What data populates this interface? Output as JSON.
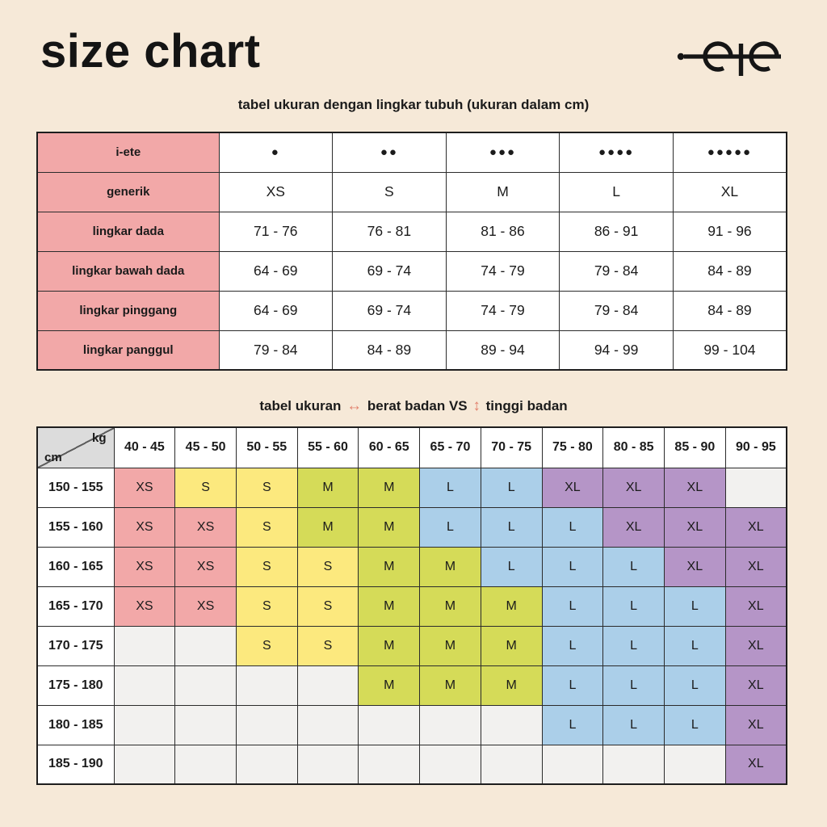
{
  "page": {
    "title": "size chart",
    "background": "#F6E9D8",
    "logo_color": "#151515"
  },
  "chart_data": [
    {
      "type": "table",
      "title": "tabel ukuran dengan lingkar tubuh (ukuran dalam cm)",
      "row_label_color": "#F2A8A8",
      "columns_by_dots": [
        "●",
        "●●",
        "●●●",
        "●●●●",
        "●●●●●"
      ],
      "columns_by_size": [
        "XS",
        "S",
        "M",
        "L",
        "XL"
      ],
      "rows": [
        {
          "label": "i-ete",
          "values": [
            "●",
            "●●",
            "●●●",
            "●●●●",
            "●●●●●"
          ]
        },
        {
          "label": "generik",
          "values": [
            "XS",
            "S",
            "M",
            "L",
            "XL"
          ]
        },
        {
          "label": "lingkar dada",
          "values": [
            "71 - 76",
            "76 - 81",
            "81 - 86",
            "86 - 91",
            "91 - 96"
          ]
        },
        {
          "label": "lingkar bawah dada",
          "values": [
            "64 - 69",
            "69 - 74",
            "74 - 79",
            "79 - 84",
            "84 - 89"
          ]
        },
        {
          "label": "lingkar pinggang",
          "values": [
            "64 - 69",
            "69 - 74",
            "74 - 79",
            "79 - 84",
            "84 - 89"
          ]
        },
        {
          "label": "lingkar panggul",
          "values": [
            "79 - 84",
            "84 - 89",
            "89 - 94",
            "94 - 99",
            "99 - 104"
          ]
        }
      ]
    },
    {
      "type": "heatmap",
      "title_parts": {
        "part1": "tabel ukuran",
        "arrow1": "↔",
        "part2": "berat badan VS",
        "arrow2": "↕",
        "part3": "tinggi badan",
        "arrow_color": "#E2826E"
      },
      "x_axis_label": "kg",
      "y_axis_label": "cm",
      "x_categories": [
        "40 - 45",
        "45 - 50",
        "50 - 55",
        "55 - 60",
        "60 - 65",
        "65 - 70",
        "70 - 75",
        "75 - 80",
        "80 - 85",
        "85 - 90",
        "90 - 95"
      ],
      "y_categories": [
        "150 - 155",
        "155 - 160",
        "160 - 165",
        "165 - 170",
        "170 - 175",
        "175 - 180",
        "180 - 185",
        "185 - 190"
      ],
      "values": [
        [
          "XS",
          "S",
          "S",
          "M",
          "M",
          "L",
          "L",
          "XL",
          "XL",
          "XL",
          ""
        ],
        [
          "XS",
          "XS",
          "S",
          "M",
          "M",
          "L",
          "L",
          "L",
          "XL",
          "XL",
          "XL"
        ],
        [
          "XS",
          "XS",
          "S",
          "S",
          "M",
          "M",
          "L",
          "L",
          "L",
          "XL",
          "XL"
        ],
        [
          "XS",
          "XS",
          "S",
          "S",
          "M",
          "M",
          "M",
          "L",
          "L",
          "L",
          "XL"
        ],
        [
          "",
          "",
          "S",
          "S",
          "M",
          "M",
          "M",
          "L",
          "L",
          "L",
          "XL"
        ],
        [
          "",
          "",
          "",
          "",
          "M",
          "M",
          "M",
          "L",
          "L",
          "L",
          "XL"
        ],
        [
          "",
          "",
          "",
          "",
          "",
          "",
          "",
          "L",
          "L",
          "L",
          "XL"
        ],
        [
          "",
          "",
          "",
          "",
          "",
          "",
          "",
          "",
          "",
          "",
          "XL"
        ]
      ],
      "legend_colors": {
        "XS": "#F2A8A8",
        "S": "#FCE97E",
        "M": "#D5DB58",
        "L": "#ABCFE9",
        "XL": "#B595C7",
        "empty": "#F2F1EF"
      },
      "corner_color": "#DCDCDC"
    }
  ]
}
